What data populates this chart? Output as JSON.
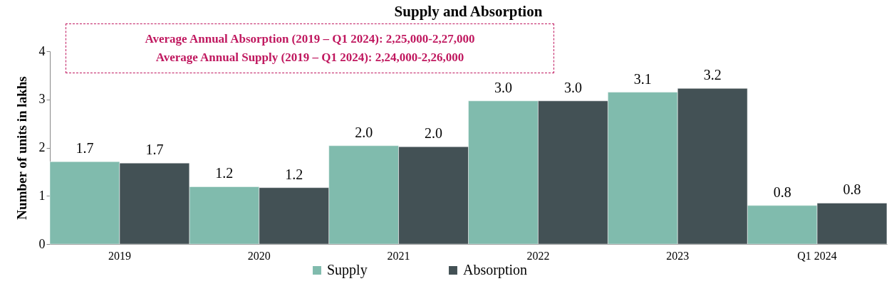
{
  "chart_data": {
    "type": "bar",
    "title": "Supply and Absorption",
    "ylabel": "Number of units in lakhs",
    "categories": [
      "2019",
      "2020",
      "2021",
      "2022",
      "2023",
      "Q1 2024"
    ],
    "series": [
      {
        "name": "Supply",
        "color": "#80bbad",
        "values": [
          1.71,
          1.19,
          2.04,
          2.97,
          3.15,
          0.8
        ],
        "value_labels": [
          "1.7",
          "1.2",
          "2.0",
          "3.0",
          "3.1",
          "0.8"
        ]
      },
      {
        "name": "Absorption",
        "color": "#435155",
        "values": [
          1.68,
          1.17,
          2.02,
          2.97,
          3.23,
          0.85
        ],
        "value_labels": [
          "1.7",
          "1.2",
          "2.0",
          "3.0",
          "3.2",
          "0.8"
        ]
      }
    ],
    "ylim": [
      0,
      4
    ],
    "yticks": [
      0,
      1,
      2,
      3,
      4
    ],
    "grid": false,
    "legend": "bottom",
    "annotations": [
      "Average Annual Absorption (2019 – Q1 2024): 2,25,000-2,27,000",
      "Average Annual Supply (2019 – Q1 2024): 2,24,000-2,26,000"
    ]
  }
}
